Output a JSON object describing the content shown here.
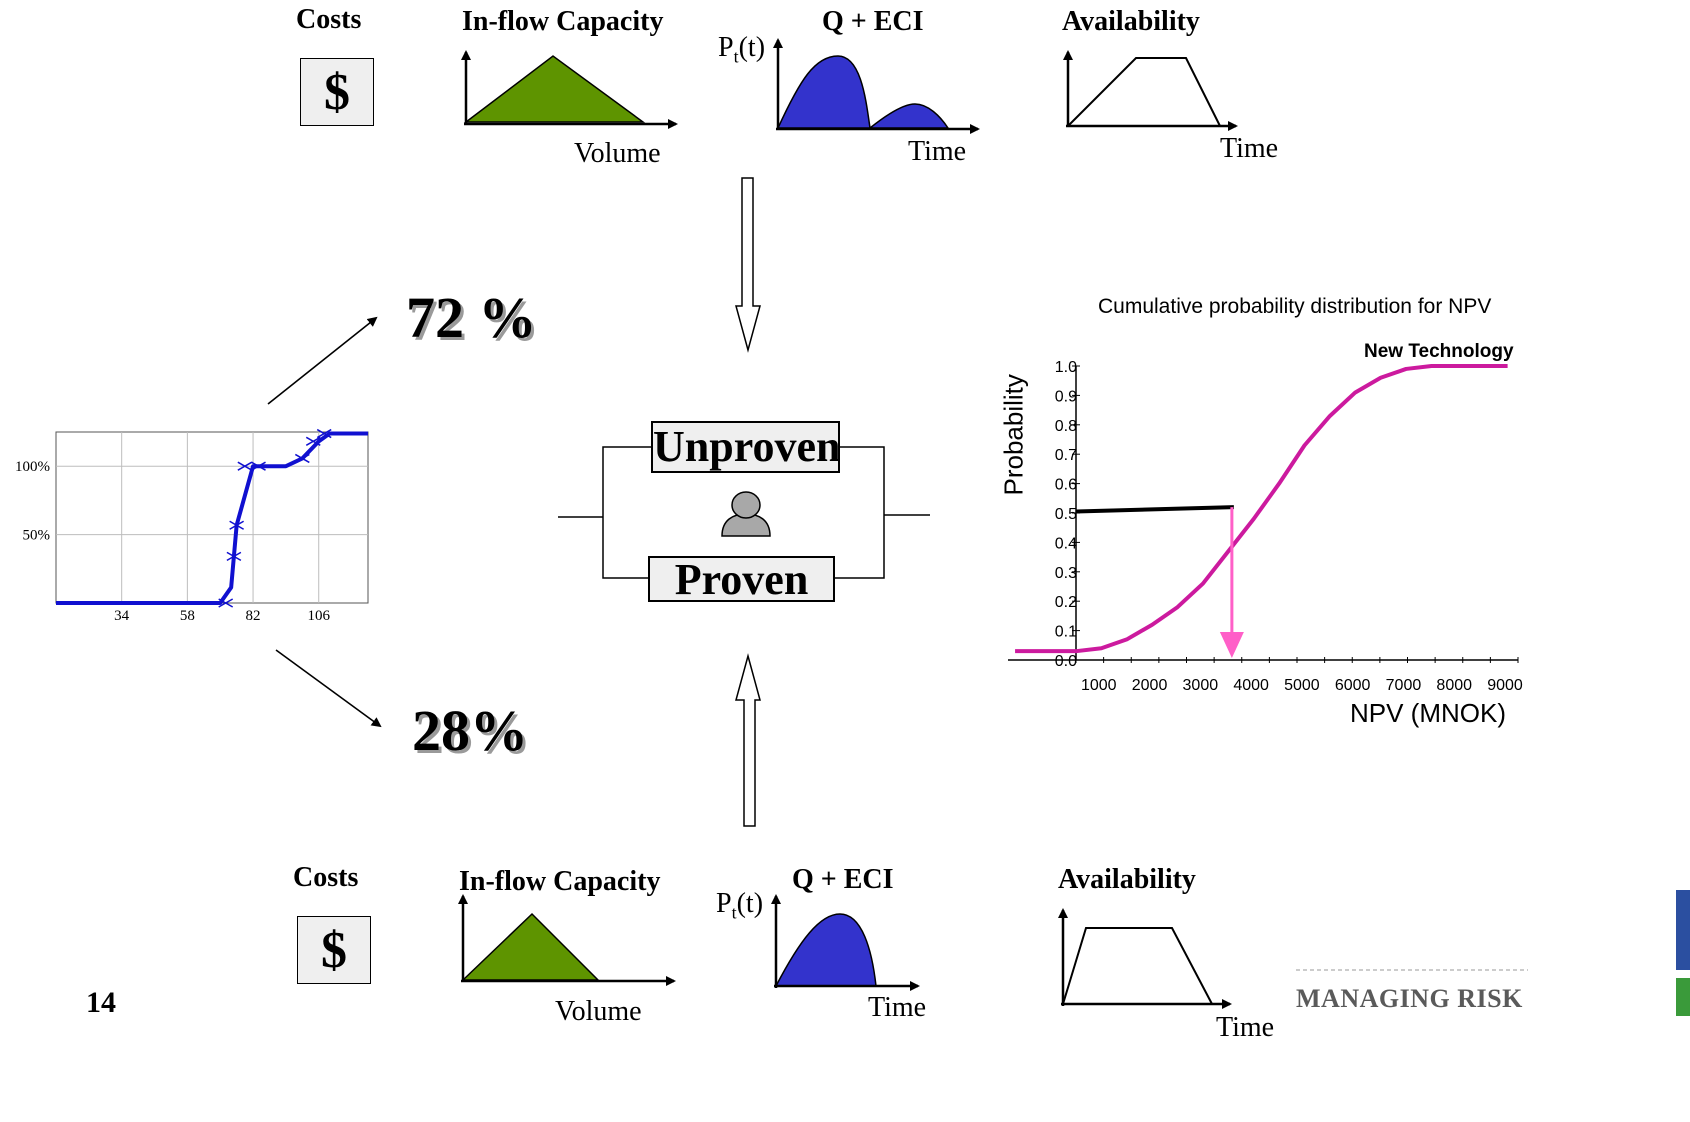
{
  "top": {
    "costs_label": "Costs",
    "cost_symbol": "$",
    "inflow_label": "In-flow Capacity",
    "volume_label": "Volume",
    "qeci_label": "Q + ECI",
    "pt_label": "P",
    "pt_sub": "t",
    "pt_suffix": "(t)",
    "qeci_time_label": "Time",
    "availability_label": "Availability",
    "availability_time_label": "Time"
  },
  "bottom": {
    "costs_label": "Costs",
    "cost_symbol": "$",
    "inflow_label": "In-flow Capacity",
    "volume_label": "Volume",
    "qeci_label": "Q + ECI",
    "pt_label": "P",
    "pt_sub": "t",
    "pt_suffix": "(t)",
    "qeci_time_label": "Time",
    "availability_label": "Availability",
    "availability_time_label": "Time"
  },
  "outcomes": {
    "high_pct": "72 %",
    "low_pct": "28%"
  },
  "center": {
    "unproven_label": "Unproven",
    "proven_label": "Proven"
  },
  "footer": {
    "page_number": "14",
    "brand_text": "MANAGING RISK"
  },
  "colors": {
    "inflow_fill": "#5e9400",
    "qeci_fill": "#3333cc",
    "step_line": "#1010d0",
    "cdf_line": "#cc1a9e",
    "drop_arrow": "#ff5fc8"
  },
  "chart_data": [
    {
      "type": "line",
      "title": "",
      "x_ticks": [
        "34",
        "58",
        "82",
        "106"
      ],
      "y_ticks": [
        "100%",
        "50%"
      ],
      "x": [
        10,
        34,
        58,
        70,
        74,
        76,
        82,
        94,
        100,
        106,
        110,
        124
      ],
      "y": [
        0,
        0,
        0,
        0,
        10,
        50,
        88,
        88,
        93,
        104,
        109,
        109
      ]
    },
    {
      "type": "line",
      "title": "Cumulative probability distribution for NPV",
      "xlabel": "NPV (MNOK)",
      "ylabel": "Probability",
      "legend": "New Technology",
      "x_ticks": [
        "1000",
        "2000",
        "3000",
        "4000",
        "5000",
        "6000",
        "7000",
        "8000",
        "9000"
      ],
      "y_ticks": [
        "0.0",
        "0.1",
        "0.2",
        "0.3",
        "0.4",
        "0.5",
        "0.6",
        "0.7",
        "0.8",
        "0.9",
        "1.0"
      ],
      "xlim": [
        0,
        9000
      ],
      "ylim": [
        0,
        1
      ],
      "series": [
        {
          "name": "New Technology",
          "x": [
            -1200,
            0,
            500,
            1000,
            1500,
            2000,
            2500,
            3000,
            3500,
            4000,
            4500,
            5000,
            5500,
            6000,
            6500,
            7000,
            7500,
            8000,
            8500
          ],
          "y": [
            0.03,
            0.03,
            0.04,
            0.07,
            0.12,
            0.18,
            0.26,
            0.37,
            0.48,
            0.6,
            0.73,
            0.83,
            0.91,
            0.96,
            0.99,
            1.0,
            1.0,
            1.0,
            1.0
          ]
        }
      ],
      "median_marker": {
        "x": 3700,
        "y": 0.52
      }
    }
  ]
}
